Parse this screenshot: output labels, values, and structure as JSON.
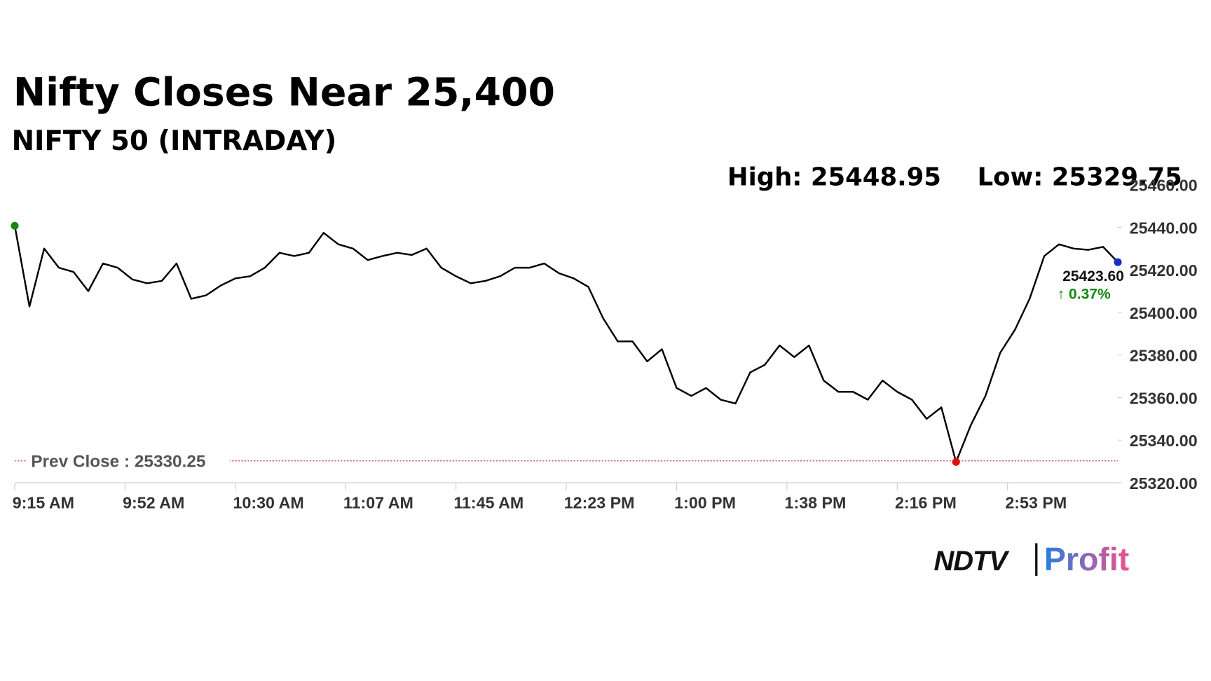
{
  "chart_data": {
    "type": "line",
    "title": "Nifty Closes Near 25,400",
    "subtitle": "NIFTY 50 (INTRADAY)",
    "high_label": "High: 25448.95",
    "low_label": "Low: 25329.75",
    "x": [
      0,
      5,
      10,
      15,
      20,
      25,
      30,
      35,
      40,
      45,
      50,
      55,
      60,
      65,
      70,
      75,
      80,
      85,
      90,
      95,
      100,
      105,
      110,
      115,
      120,
      125,
      130,
      135,
      140,
      145,
      150,
      155,
      160,
      165,
      170,
      175,
      180,
      185,
      190,
      195,
      200,
      205,
      210,
      215,
      220,
      225,
      230,
      235,
      240,
      245,
      250,
      255,
      260,
      265,
      270,
      275,
      280,
      285,
      290,
      295,
      300,
      305,
      310,
      315,
      320,
      325,
      330,
      335,
      340,
      345,
      350,
      355,
      360,
      365,
      370,
      375
    ],
    "series": [
      {
        "name": "NIFTY 50",
        "color": "#000000",
        "values": [
          25440.7,
          25402.8,
          25430,
          25421,
          25419,
          25410,
          25423,
          25421,
          25415.5,
          25413.7,
          25414.8,
          25423,
          25406.4,
          25408,
          25412.6,
          25416,
          25417,
          25421,
          25428,
          25426.5,
          25428,
          25437.4,
          25432,
          25430,
          25424.6,
          25426.5,
          25428,
          25427,
          25430,
          25421,
          25417,
          25413.7,
          25414.8,
          25417,
          25421,
          25421,
          25423,
          25418.4,
          25416,
          25412,
          25397.3,
          25386.4,
          25386.4,
          25377,
          25382.7,
          25364.5,
          25360.8,
          25364.5,
          25359,
          25357.2,
          25371.8,
          25375.4,
          25384.5,
          25379,
          25384.5,
          25368,
          25362.7,
          25362.7,
          25359,
          25368,
          25362.7,
          25359,
          25350,
          25355.4,
          25329.75,
          25347,
          25360.8,
          25381,
          25391.8,
          25406.4,
          25426.5,
          25432,
          25430,
          25429.4,
          25430.8,
          25423.6
        ],
        "value_labels": {
          "75": "25423.60"
        }
      }
    ],
    "last_change_label": "↑ 0.37%",
    "markers": {
      "start": "#118811",
      "low": "#e01010",
      "end": "#1530c8"
    },
    "prev_close": 25330.25,
    "prev_close_label": "Prev Close : 25330.25",
    "prev_close_color": "#c03030",
    "xlim": [
      0,
      375
    ],
    "xticks": [
      {
        "value": 0,
        "label": "9:15 AM"
      },
      {
        "value": 37.5,
        "label": "9:52 AM"
      },
      {
        "value": 75,
        "label": "10:30 AM"
      },
      {
        "value": 112.5,
        "label": "11:07 AM"
      },
      {
        "value": 150,
        "label": "11:45 AM"
      },
      {
        "value": 187.5,
        "label": "12:23 PM"
      },
      {
        "value": 225,
        "label": "1:00 PM"
      },
      {
        "value": 262.5,
        "label": "1:38 PM"
      },
      {
        "value": 300,
        "label": "2:16 PM"
      },
      {
        "value": 337.5,
        "label": "2:53 PM"
      }
    ],
    "ylim": [
      25320,
      25460
    ],
    "yticks": [
      {
        "value": 25320,
        "label": "25320.00"
      },
      {
        "value": 25340,
        "label": "25340.00"
      },
      {
        "value": 25360,
        "label": "25360.00"
      },
      {
        "value": 25380,
        "label": "25380.00"
      },
      {
        "value": 25400,
        "label": "25400.00"
      },
      {
        "value": 25420,
        "label": "25420.00"
      },
      {
        "value": 25440,
        "label": "25440.00"
      },
      {
        "value": 25460,
        "label": "25460.00"
      }
    ]
  },
  "logo": {
    "brand": "NDTV",
    "product": "Profit"
  }
}
